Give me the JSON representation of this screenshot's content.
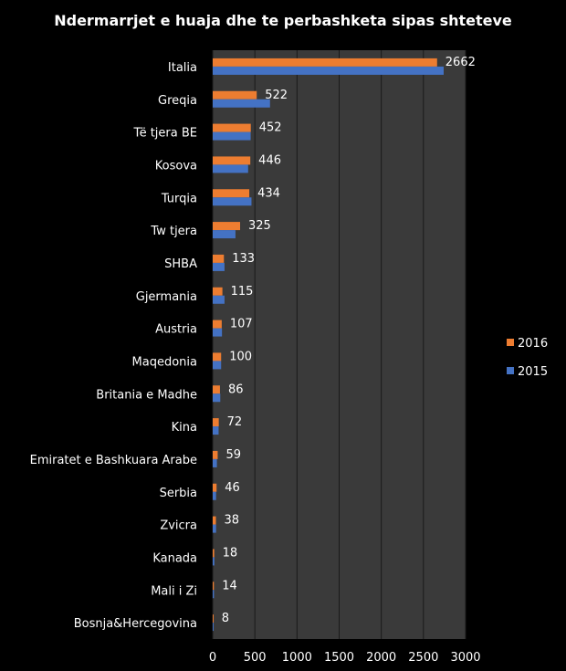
{
  "chart_data": {
    "type": "bar",
    "orientation": "horizontal",
    "title": "Ndermarrjet e huaja dhe te perbashketa sipas shteteve",
    "xlabel": "",
    "ylabel": "",
    "xlim": [
      0,
      3000
    ],
    "ticks": [
      0,
      500,
      1000,
      1500,
      2000,
      2500,
      3000
    ],
    "grid": true,
    "legend_position": "right",
    "categories": [
      "Italia",
      "Greqia",
      "Të tjera BE",
      "Kosova",
      "Turqia",
      "Tw tjera",
      "SHBA",
      "Gjermania",
      "Austria",
      "Maqedonia",
      "Britania e Madhe",
      "Kina",
      "Emiratet e Bashkuara Arabe",
      "Serbia",
      "Zvicra",
      "Kanada",
      "Mali i Zi",
      "Bosnja&Hercegovina"
    ],
    "series": [
      {
        "name": "2016",
        "color": "#ED7D31",
        "values": [
          2662,
          522,
          452,
          446,
          434,
          325,
          133,
          115,
          107,
          100,
          86,
          72,
          59,
          46,
          38,
          18,
          14,
          8
        ],
        "labels": [
          "2662",
          "522",
          "452",
          "446",
          "434",
          "325",
          "133",
          "115",
          "107",
          "100",
          "86",
          "72",
          "59",
          "46",
          "38",
          "18",
          "14",
          "8"
        ]
      },
      {
        "name": "2015",
        "color": "#4472C4",
        "values": [
          2740,
          680,
          450,
          420,
          460,
          270,
          140,
          140,
          110,
          100,
          90,
          70,
          50,
          40,
          40,
          20,
          15,
          5
        ]
      }
    ],
    "legend": [
      "2016",
      "2015"
    ]
  }
}
